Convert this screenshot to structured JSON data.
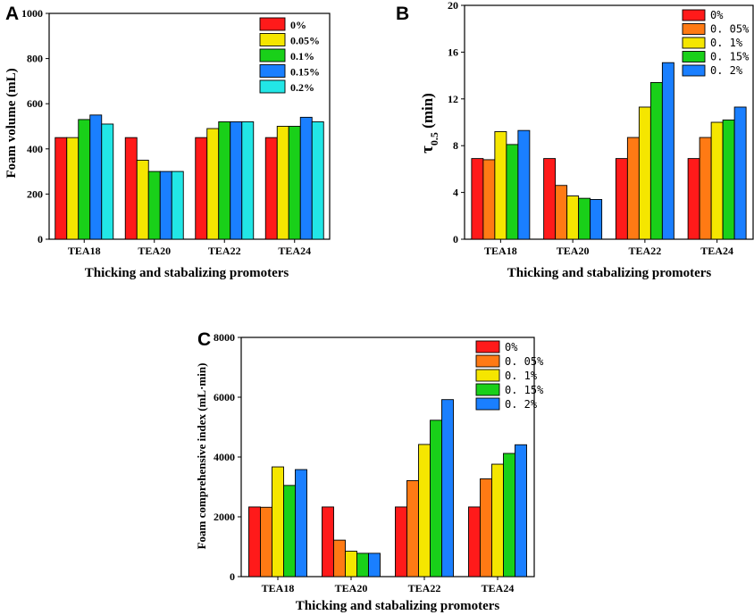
{
  "colors": [
    "#ff1a1a",
    "#ff7a14",
    "#f5e600",
    "#19d019",
    "#1a7fff"
  ],
  "charts": {
    "a": {
      "letter": "A",
      "ylabel": "Foam volume (mL)",
      "xlabel": "Thicking and stabalizing promoters",
      "ylim": [
        0,
        1000
      ],
      "yticks": [
        "0",
        "200",
        "400",
        "600",
        "800",
        "1000"
      ],
      "categories": [
        "TEA18",
        "TEA20",
        "TEA22",
        "TEA24"
      ],
      "series": [
        {
          "name": "0%",
          "color": "#ff1a1a",
          "values": [
            450,
            450,
            450,
            450
          ]
        },
        {
          "name": "0.05%",
          "color": "#f5e600",
          "values": [
            450,
            350,
            490,
            500
          ]
        },
        {
          "name": "0.1%",
          "color": "#19d019",
          "values": [
            530,
            300,
            520,
            500
          ]
        },
        {
          "name": "0.15%",
          "color": "#1a7fff",
          "values": [
            550,
            300,
            520,
            540
          ]
        },
        {
          "name": "0.2%",
          "color": "#22e6e6",
          "values": [
            510,
            300,
            520,
            520
          ]
        }
      ]
    },
    "b": {
      "letter": "B",
      "ylabel_main": "τ",
      "ylabel_sub": "0.5",
      "ylabel_unit": " (min)",
      "xlabel": "Thicking and stabalizing promoters",
      "ylim": [
        0,
        20
      ],
      "yticks": [
        "0",
        "4",
        "8",
        "12",
        "16",
        "20"
      ],
      "categories": [
        "TEA18",
        "TEA20",
        "TEA22",
        "TEA24"
      ],
      "series": [
        {
          "name": "0%",
          "color": "#ff1a1a",
          "values": [
            6.9,
            6.9,
            6.9,
            6.9
          ]
        },
        {
          "name": "0. 05%",
          "color": "#ff7a14",
          "values": [
            6.8,
            4.6,
            8.7,
            8.7
          ]
        },
        {
          "name": "0. 1%",
          "color": "#f5e600",
          "values": [
            9.2,
            3.7,
            11.3,
            10.0
          ]
        },
        {
          "name": "0. 15%",
          "color": "#19d019",
          "values": [
            8.1,
            3.5,
            13.4,
            10.2
          ]
        },
        {
          "name": "0. 2%",
          "color": "#1a7fff",
          "values": [
            9.3,
            3.4,
            15.1,
            11.3
          ]
        }
      ]
    },
    "c": {
      "letter": "C",
      "ylabel": "Foam comprehensive index (mL·min)",
      "xlabel": "Thicking and stabalizing promoters",
      "ylim": [
        0,
        8000
      ],
      "yticks": [
        "0",
        "2000",
        "4000",
        "6000",
        "8000"
      ],
      "categories": [
        "TEA18",
        "TEA20",
        "TEA22",
        "TEA24"
      ],
      "series": [
        {
          "name": "0%",
          "color": "#ff1a1a",
          "values": [
            2330,
            2330,
            2330,
            2330
          ]
        },
        {
          "name": "0. 05%",
          "color": "#ff7a14",
          "values": [
            2320,
            1220,
            3210,
            3270
          ]
        },
        {
          "name": "0. 1%",
          "color": "#f5e600",
          "values": [
            3670,
            850,
            4420,
            3760
          ]
        },
        {
          "name": "0. 15%",
          "color": "#19d019",
          "values": [
            3050,
            780,
            5230,
            4120
          ]
        },
        {
          "name": "0. 2%",
          "color": "#1a7fff",
          "values": [
            3580,
            780,
            5920,
            4410
          ]
        }
      ]
    }
  }
}
